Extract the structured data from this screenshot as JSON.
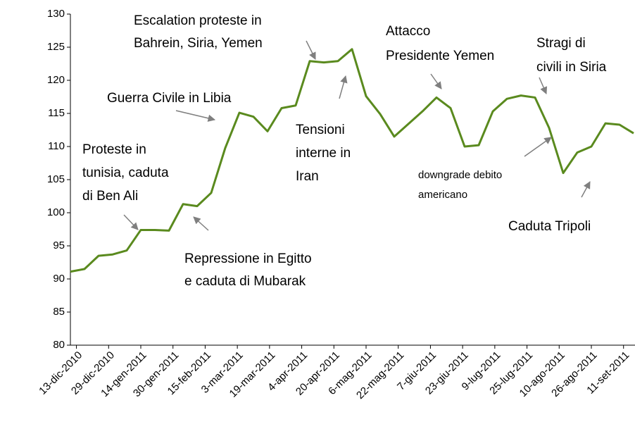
{
  "chart_data": {
    "type": "line",
    "x": [
      "2010-12-10",
      "2010-12-17",
      "2010-12-24",
      "2010-12-31",
      "2011-01-07",
      "2011-01-14",
      "2011-01-21",
      "2011-01-28",
      "2011-02-04",
      "2011-02-11",
      "2011-02-18",
      "2011-02-25",
      "2011-03-04",
      "2011-03-11",
      "2011-03-18",
      "2011-03-25",
      "2011-04-01",
      "2011-04-08",
      "2011-04-15",
      "2011-04-22",
      "2011-04-29",
      "2011-05-06",
      "2011-05-13",
      "2011-05-20",
      "2011-05-27",
      "2011-06-03",
      "2011-06-10",
      "2011-06-17",
      "2011-06-24",
      "2011-07-01",
      "2011-07-08",
      "2011-07-15",
      "2011-07-22",
      "2011-07-29",
      "2011-08-05",
      "2011-08-12",
      "2011-08-19",
      "2011-08-26",
      "2011-09-02",
      "2011-09-09",
      "2011-09-16"
    ],
    "series": [
      {
        "color": "#5a8a1e",
        "values": [
          91.1,
          91.5,
          93.5,
          93.7,
          94.3,
          97.4,
          97.4,
          97.3,
          101.3,
          101.0,
          103,
          109.8,
          115.1,
          114.5,
          112.3,
          115.8,
          116.2,
          122.9,
          122.7,
          122.9,
          124.7,
          117.6,
          114.9,
          111.5,
          113.4,
          115.3,
          117.4,
          115.8,
          110,
          110.2,
          115.3,
          117.2,
          117.7,
          117.4,
          112.8,
          106,
          109.1,
          110,
          113.5,
          113.3,
          112
        ]
      }
    ],
    "xlim": [
      "2010-12-10",
      "2011-09-16"
    ],
    "xticks": [
      {
        "value": "2010-12-13",
        "label": "13-dic-2010"
      },
      {
        "value": "2010-12-29",
        "label": "29-dic-2010"
      },
      {
        "value": "2011-01-14",
        "label": "14-gen-2011"
      },
      {
        "value": "2011-01-30",
        "label": "30-gen-2011"
      },
      {
        "value": "2011-02-15",
        "label": "15-feb-2011"
      },
      {
        "value": "2011-03-03",
        "label": "3-mar-2011"
      },
      {
        "value": "2011-03-19",
        "label": "19-mar-2011"
      },
      {
        "value": "2011-04-04",
        "label": "4-apr-2011"
      },
      {
        "value": "2011-04-20",
        "label": "20-apr-2011"
      },
      {
        "value": "2011-05-06",
        "label": "6-mag-2011"
      },
      {
        "value": "2011-05-22",
        "label": "22-mag-2011"
      },
      {
        "value": "2011-06-07",
        "label": "7-giu-2011"
      },
      {
        "value": "2011-06-23",
        "label": "23-giu-2011"
      },
      {
        "value": "2011-07-09",
        "label": "9-lug-2011"
      },
      {
        "value": "2011-07-25",
        "label": "25-lug-2011"
      },
      {
        "value": "2011-08-10",
        "label": "10-ago-2011"
      },
      {
        "value": "2011-08-26",
        "label": "26-ago-2011"
      },
      {
        "value": "2011-09-11",
        "label": "11-set-2011"
      }
    ],
    "ylim": [
      80,
      130
    ],
    "yticks": [
      80,
      85,
      90,
      95,
      100,
      105,
      110,
      115,
      120,
      125,
      130
    ],
    "grid": false,
    "annotations": [
      {
        "lines": [
          "Proteste in",
          "tunisia, caduta",
          "di Ben Ali"
        ]
      },
      {
        "lines": [
          "Guerra Civile in Libia"
        ]
      },
      {
        "lines": [
          "Repressione  in Egitto",
          "e caduta di Mubarak"
        ]
      },
      {
        "lines": [
          "Escalation proteste in",
          "Bahrein, Siria, Yemen"
        ]
      },
      {
        "lines": [
          "Tensioni",
          "interne in",
          "Iran"
        ]
      },
      {
        "lines": [
          "Attacco",
          "Presidente Yemen"
        ]
      },
      {
        "lines": [
          "Stragi di",
          "civili in Siria"
        ]
      },
      {
        "lines": [
          "downgrade debito",
          "americano"
        ]
      },
      {
        "lines": [
          "Caduta Tripoli"
        ]
      }
    ]
  }
}
